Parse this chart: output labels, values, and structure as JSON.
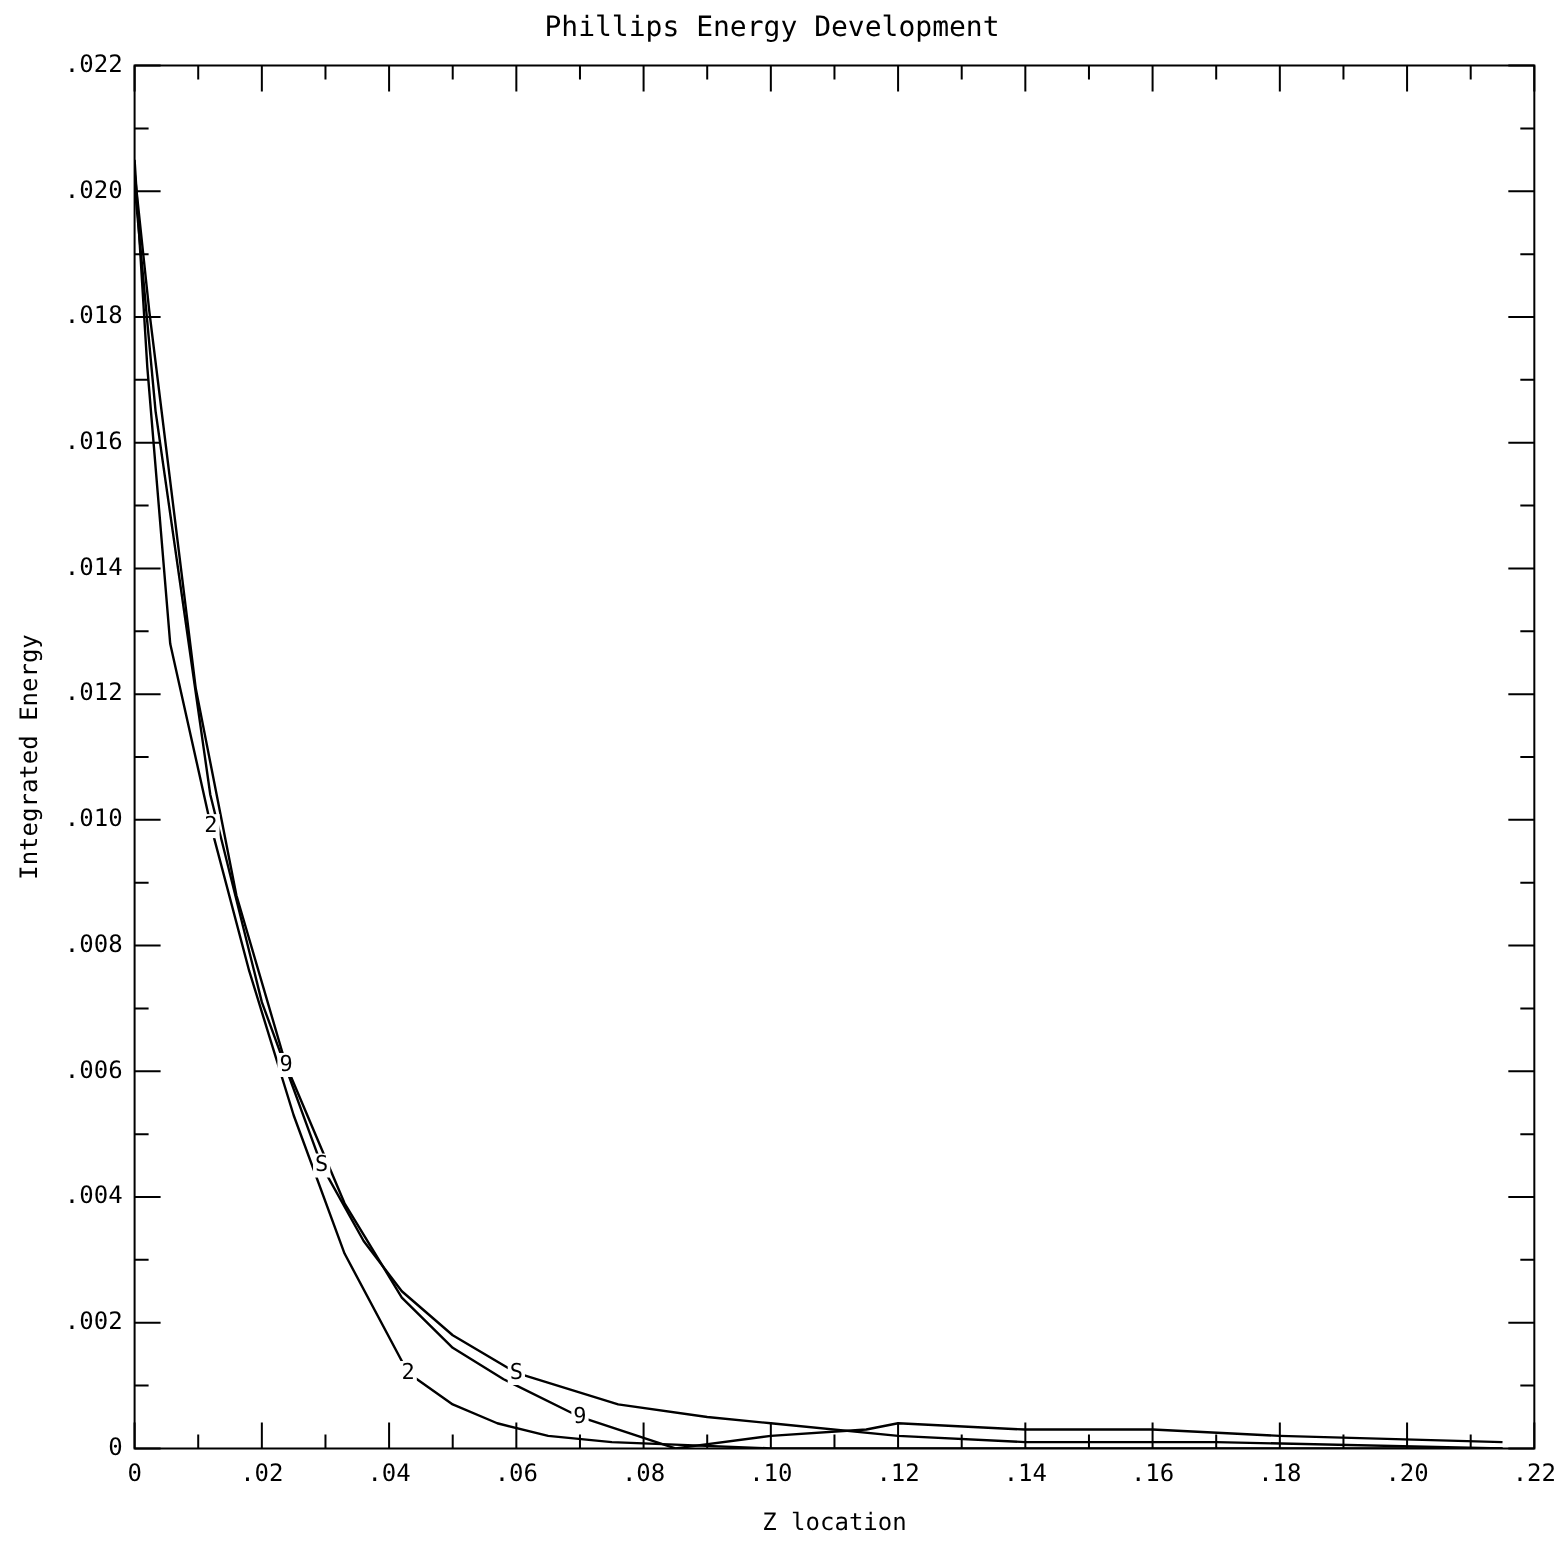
{
  "chart_data": {
    "type": "line",
    "title": "Phillips Energy Development",
    "xlabel": "Z location",
    "ylabel": "Integrated Energy",
    "xlim": [
      0,
      0.22
    ],
    "ylim": [
      0,
      0.022
    ],
    "xticks": [
      {
        "value": 0,
        "label": "0"
      },
      {
        "value": 0.01,
        "label": null
      },
      {
        "value": 0.02,
        "label": ".02"
      },
      {
        "value": 0.03,
        "label": null
      },
      {
        "value": 0.04,
        "label": ".04"
      },
      {
        "value": 0.05,
        "label": null
      },
      {
        "value": 0.06,
        "label": ".06"
      },
      {
        "value": 0.07,
        "label": null
      },
      {
        "value": 0.08,
        "label": ".08"
      },
      {
        "value": 0.09,
        "label": null
      },
      {
        "value": 0.1,
        "label": ".10"
      },
      {
        "value": 0.11,
        "label": null
      },
      {
        "value": 0.12,
        "label": ".12"
      },
      {
        "value": 0.13,
        "label": null
      },
      {
        "value": 0.14,
        "label": ".14"
      },
      {
        "value": 0.15,
        "label": null
      },
      {
        "value": 0.16,
        "label": ".16"
      },
      {
        "value": 0.17,
        "label": null
      },
      {
        "value": 0.18,
        "label": ".18"
      },
      {
        "value": 0.19,
        "label": null
      },
      {
        "value": 0.2,
        "label": ".20"
      },
      {
        "value": 0.21,
        "label": null
      },
      {
        "value": 0.22,
        "label": ".22"
      }
    ],
    "yticks": [
      {
        "value": 0,
        "label": "0"
      },
      {
        "value": 0.001,
        "label": null
      },
      {
        "value": 0.002,
        "label": ".002"
      },
      {
        "value": 0.003,
        "label": null
      },
      {
        "value": 0.004,
        "label": ".004"
      },
      {
        "value": 0.005,
        "label": null
      },
      {
        "value": 0.006,
        "label": ".006"
      },
      {
        "value": 0.007,
        "label": null
      },
      {
        "value": 0.008,
        "label": ".008"
      },
      {
        "value": 0.009,
        "label": null
      },
      {
        "value": 0.01,
        "label": ".010"
      },
      {
        "value": 0.011,
        "label": null
      },
      {
        "value": 0.012,
        "label": ".012"
      },
      {
        "value": 0.013,
        "label": null
      },
      {
        "value": 0.014,
        "label": ".014"
      },
      {
        "value": 0.015,
        "label": null
      },
      {
        "value": 0.016,
        "label": ".016"
      },
      {
        "value": 0.017,
        "label": null
      },
      {
        "value": 0.018,
        "label": ".018"
      },
      {
        "value": 0.019,
        "label": null
      },
      {
        "value": 0.02,
        "label": ".020"
      },
      {
        "value": 0.021,
        "label": null
      },
      {
        "value": 0.022,
        "label": ".022"
      }
    ],
    "grid": false,
    "legend": false,
    "marker": "none",
    "line_style": "solid",
    "series": [
      {
        "name": "2",
        "color": "#000000",
        "x": [
          0,
          0.002,
          0.0056,
          0.012,
          0.018,
          0.025,
          0.033,
          0.043,
          0.05,
          0.057,
          0.065,
          0.075,
          0.1,
          0.215
        ],
        "values": [
          0.0205,
          0.0172,
          0.0128,
          0.0099,
          0.0076,
          0.0053,
          0.0031,
          0.0012,
          0.0007,
          0.0004,
          0.0002,
          0.0001,
          0.0,
          0.0
        ]
      },
      {
        "name": "9",
        "color": "#000000",
        "x": [
          0,
          0.0023,
          0.0096,
          0.016,
          0.0238,
          0.033,
          0.042,
          0.05,
          0.058,
          0.07,
          0.085,
          0.1,
          0.115,
          0.12,
          0.14,
          0.16,
          0.18,
          0.215
        ],
        "values": [
          0.0203,
          0.0181,
          0.0121,
          0.0088,
          0.0061,
          0.0039,
          0.0024,
          0.0016,
          0.0011,
          0.0005,
          0.0,
          0.0002,
          0.0003,
          0.0004,
          0.0003,
          0.0003,
          0.0002,
          0.0001
        ]
      },
      {
        "name": "S",
        "color": "#000000",
        "x": [
          0,
          0.0033,
          0.0119,
          0.02,
          0.0294,
          0.036,
          0.042,
          0.05,
          0.06,
          0.076,
          0.09,
          0.1,
          0.12,
          0.14,
          0.17,
          0.215
        ],
        "values": [
          0.0201,
          0.0165,
          0.0104,
          0.0071,
          0.0045,
          0.0033,
          0.0025,
          0.0018,
          0.0012,
          0.0007,
          0.0005,
          0.0004,
          0.0002,
          0.0001,
          0.0001,
          0.0
        ]
      }
    ]
  }
}
